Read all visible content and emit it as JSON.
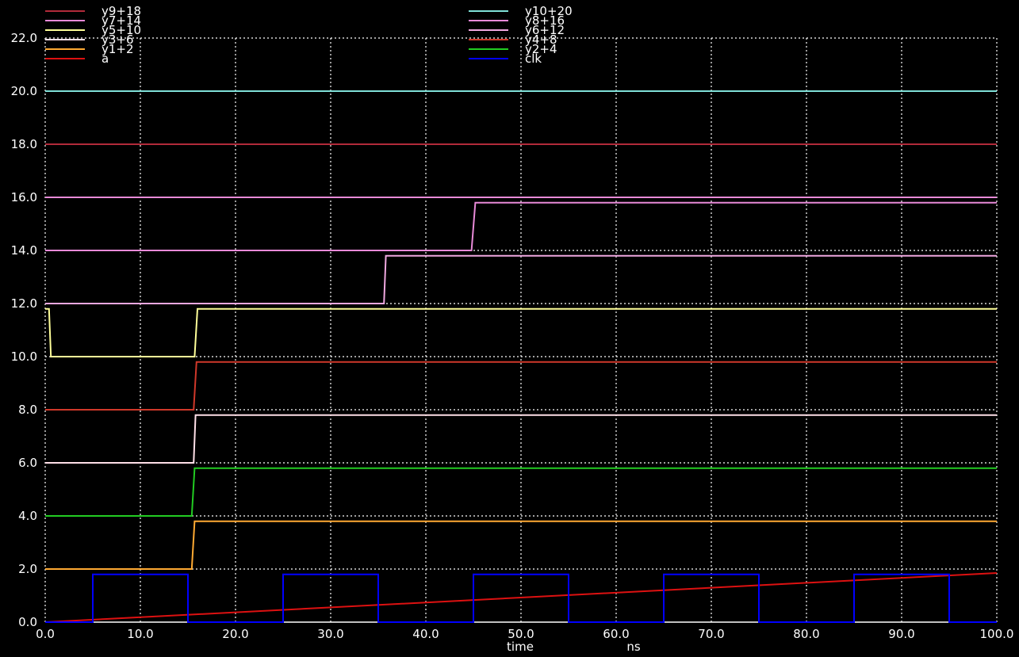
{
  "chart_data": {
    "type": "line",
    "xlabel": "time",
    "xunit": "ns",
    "xlim": [
      0,
      100
    ],
    "ylim": [
      0,
      22
    ],
    "grid": true,
    "legend_position": "top",
    "x_ticks": [
      "0.0",
      "10.0",
      "20.0",
      "30.0",
      "40.0",
      "50.0",
      "60.0",
      "70.0",
      "80.0",
      "90.0",
      "100.0"
    ],
    "y_ticks": [
      "0.0",
      "2.0",
      "4.0",
      "6.0",
      "8.0",
      "10.0",
      "12.0",
      "14.0",
      "16.0",
      "18.0",
      "20.0",
      "22.0"
    ],
    "series": [
      {
        "name": "y9+18",
        "color": "#b22a3a",
        "points": [
          [
            0,
            18
          ],
          [
            100,
            18
          ]
        ]
      },
      {
        "name": "y10+20",
        "color": "#7fe0d8",
        "points": [
          [
            0,
            20
          ],
          [
            100,
            20
          ]
        ]
      },
      {
        "name": "y7+14",
        "color": "#e88ad8",
        "points": [
          [
            0,
            14
          ],
          [
            44.8,
            14
          ],
          [
            45.2,
            15.8
          ],
          [
            100,
            15.8
          ]
        ]
      },
      {
        "name": "y8+16",
        "color": "#e88ad8",
        "points": [
          [
            0,
            16
          ],
          [
            100,
            16
          ]
        ]
      },
      {
        "name": "y5+10",
        "color": "#ffff99",
        "points": [
          [
            0,
            11.8
          ],
          [
            0.4,
            11.8
          ],
          [
            0.6,
            10
          ],
          [
            15.7,
            10
          ],
          [
            16.0,
            11.8
          ],
          [
            100,
            11.8
          ]
        ]
      },
      {
        "name": "y6+12",
        "color": "#f0a8e0",
        "points": [
          [
            0,
            12
          ],
          [
            35.6,
            12
          ],
          [
            35.8,
            13.8
          ],
          [
            100,
            13.8
          ]
        ]
      },
      {
        "name": "y3+6",
        "color": "#ffe0e8",
        "points": [
          [
            0,
            6
          ],
          [
            15.6,
            6
          ],
          [
            15.8,
            7.8
          ],
          [
            100,
            7.8
          ]
        ]
      },
      {
        "name": "y4+8",
        "color": "#d0382a",
        "points": [
          [
            0,
            8
          ],
          [
            15.6,
            8
          ],
          [
            15.9,
            9.8
          ],
          [
            100,
            9.8
          ]
        ]
      },
      {
        "name": "y1+2",
        "color": "#ffaa33",
        "points": [
          [
            0,
            2
          ],
          [
            15.4,
            2
          ],
          [
            15.7,
            3.8
          ],
          [
            100,
            3.8
          ]
        ]
      },
      {
        "name": "y2+4",
        "color": "#22cc22",
        "points": [
          [
            0,
            4
          ],
          [
            15.4,
            4
          ],
          [
            15.7,
            5.8
          ],
          [
            100,
            5.8
          ]
        ]
      },
      {
        "name": "a",
        "color": "#dd1111",
        "points": [
          [
            0,
            0
          ],
          [
            100,
            1.85
          ]
        ]
      },
      {
        "name": "clk",
        "color": "#0000ff",
        "points": [
          [
            0,
            0
          ],
          [
            5,
            0
          ],
          [
            5,
            1.8
          ],
          [
            15,
            1.8
          ],
          [
            15,
            0
          ],
          [
            25,
            0
          ],
          [
            25,
            1.8
          ],
          [
            35,
            1.8
          ],
          [
            35,
            0
          ],
          [
            45,
            0
          ],
          [
            45,
            1.8
          ],
          [
            55,
            1.8
          ],
          [
            55,
            0
          ],
          [
            65,
            0
          ],
          [
            65,
            1.8
          ],
          [
            75,
            1.8
          ],
          [
            75,
            0
          ],
          [
            85,
            0
          ],
          [
            85,
            1.8
          ],
          [
            95,
            1.8
          ],
          [
            95,
            0
          ],
          [
            100,
            0
          ]
        ]
      }
    ]
  }
}
